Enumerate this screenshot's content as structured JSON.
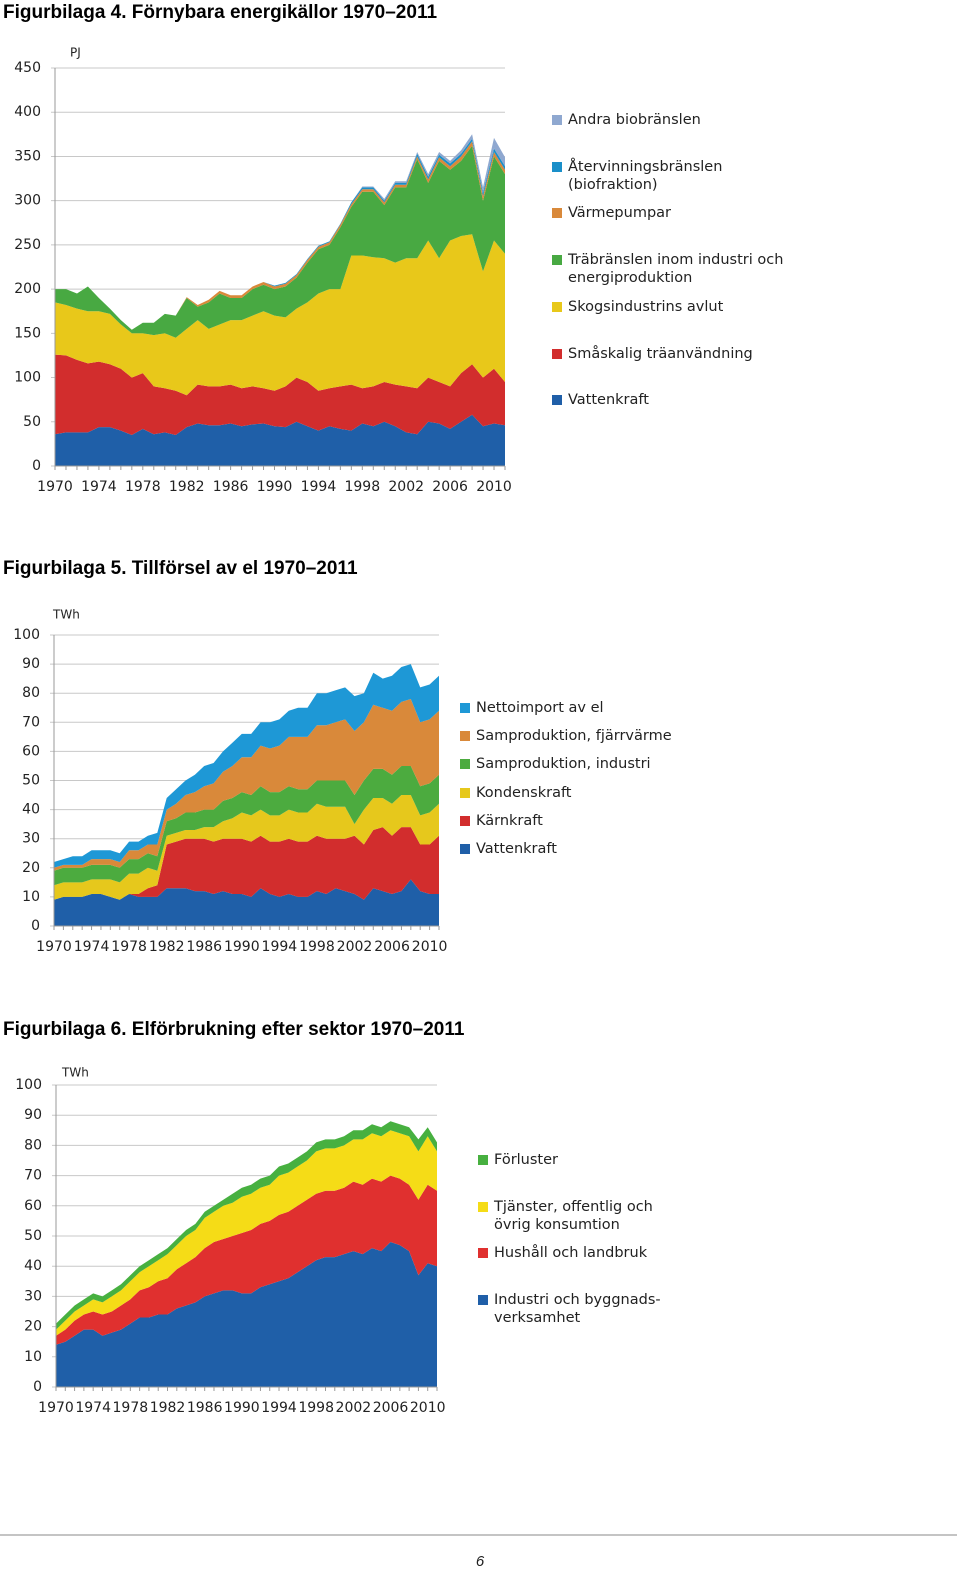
{
  "chart_data": [
    {
      "type": "area",
      "title": "Figurbilaga 4. Förnybara energikällor 1970–2011",
      "unit": "PJ",
      "x": [
        1970,
        1971,
        1972,
        1973,
        1974,
        1975,
        1976,
        1977,
        1978,
        1979,
        1980,
        1981,
        1982,
        1983,
        1984,
        1985,
        1986,
        1987,
        1988,
        1989,
        1990,
        1991,
        1992,
        1993,
        1994,
        1995,
        1996,
        1997,
        1998,
        1999,
        2000,
        2001,
        2002,
        2003,
        2004,
        2005,
        2006,
        2007,
        2008,
        2009,
        2010,
        2011
      ],
      "xlim": [
        1970,
        2011
      ],
      "xticks": [
        1970,
        1974,
        1978,
        1982,
        1986,
        1990,
        1994,
        1998,
        2002,
        2006,
        2010
      ],
      "ylim": [
        0,
        450
      ],
      "yticks": [
        0,
        50,
        100,
        150,
        200,
        250,
        300,
        350,
        400,
        450
      ],
      "grid": true,
      "stacked": true,
      "series": [
        {
          "name": "Vattenkraft",
          "color": "#1f5fa8",
          "values": [
            36,
            38,
            38,
            38,
            44,
            44,
            40,
            35,
            42,
            36,
            38,
            35,
            44,
            48,
            46,
            46,
            48,
            45,
            47,
            48,
            45,
            44,
            50,
            45,
            40,
            45,
            42,
            40,
            48,
            45,
            50,
            45,
            38,
            36,
            50,
            48,
            42,
            50,
            58,
            45,
            48,
            46
          ]
        },
        {
          "name": "Småskalig träanvändning",
          "color": "#d22d2d",
          "values": [
            90,
            87,
            82,
            78,
            74,
            71,
            70,
            65,
            63,
            54,
            50,
            50,
            36,
            44,
            44,
            44,
            44,
            43,
            43,
            40,
            40,
            46,
            50,
            50,
            45,
            43,
            48,
            52,
            40,
            45,
            45,
            47,
            52,
            52,
            50,
            47,
            48,
            55,
            57,
            55,
            62,
            49
          ]
        },
        {
          "name": "Skogsindustrins avlut",
          "color": "#e8c81a",
          "values": [
            59,
            57,
            58,
            59,
            57,
            57,
            50,
            50,
            45,
            58,
            62,
            60,
            75,
            73,
            65,
            70,
            73,
            77,
            80,
            87,
            85,
            78,
            78,
            90,
            110,
            112,
            110,
            146,
            150,
            146,
            140,
            138,
            145,
            147,
            155,
            140,
            165,
            155,
            147,
            120,
            145,
            145
          ]
        },
        {
          "name": "Träbränslen inom industri och energiproduktion",
          "color": "#48a942",
          "values": [
            15,
            18,
            17,
            28,
            15,
            6,
            5,
            4,
            12,
            14,
            22,
            25,
            35,
            15,
            30,
            35,
            25,
            25,
            30,
            30,
            30,
            35,
            35,
            45,
            50,
            50,
            70,
            55,
            72,
            74,
            60,
            85,
            80,
            112,
            65,
            110,
            80,
            85,
            100,
            80,
            95,
            90
          ]
        },
        {
          "name": "Värmepumpar",
          "color": "#d9893a",
          "values": [
            0,
            0,
            0,
            0,
            0,
            0,
            0,
            0,
            0,
            0,
            0,
            0,
            1,
            2,
            3,
            3,
            3,
            3,
            3,
            3,
            3,
            3,
            3,
            3,
            3,
            3,
            3,
            3,
            3,
            3,
            3,
            3,
            3,
            3,
            4,
            4,
            4,
            5,
            5,
            5,
            5,
            5
          ]
        },
        {
          "name": "Återvinningsbränslen (biofraktion)",
          "color": "#1a8fc9",
          "values": [
            0,
            0,
            0,
            0,
            0,
            0,
            0,
            0,
            0,
            0,
            0,
            0,
            0,
            0,
            0,
            0,
            0,
            0,
            0,
            0,
            1,
            1,
            1,
            1,
            1,
            1,
            1,
            2,
            2,
            2,
            2,
            2,
            2,
            3,
            3,
            3,
            3,
            3,
            3,
            4,
            4,
            4
          ]
        },
        {
          "name": "Andra biobränslen",
          "color": "#8fa8d0",
          "values": [
            0,
            0,
            0,
            0,
            0,
            0,
            0,
            0,
            0,
            0,
            0,
            0,
            0,
            0,
            0,
            0,
            0,
            0,
            0,
            0,
            0,
            0,
            0,
            0,
            0,
            0,
            0,
            0,
            1,
            1,
            2,
            2,
            2,
            2,
            3,
            3,
            3,
            4,
            5,
            6,
            12,
            10
          ]
        }
      ]
    },
    {
      "type": "area",
      "title": "Figurbilaga 5. Tillförsel av el 1970–2011",
      "unit": "TWh",
      "x": [
        1970,
        1971,
        1972,
        1973,
        1974,
        1975,
        1976,
        1977,
        1978,
        1979,
        1980,
        1981,
        1982,
        1983,
        1984,
        1985,
        1986,
        1987,
        1988,
        1989,
        1990,
        1991,
        1992,
        1993,
        1994,
        1995,
        1996,
        1997,
        1998,
        1999,
        2000,
        2001,
        2002,
        2003,
        2004,
        2005,
        2006,
        2007,
        2008,
        2009,
        2010,
        2011
      ],
      "xlim": [
        1970,
        2011
      ],
      "xticks": [
        1970,
        1974,
        1978,
        1982,
        1986,
        1990,
        1994,
        1998,
        2002,
        2006,
        2010
      ],
      "ylim": [
        0,
        100
      ],
      "yticks": [
        0,
        10,
        20,
        30,
        40,
        50,
        60,
        70,
        80,
        90,
        100
      ],
      "grid": true,
      "stacked": true,
      "series": [
        {
          "name": "Vattenkraft",
          "color": "#1f5fa8",
          "values": [
            9,
            10,
            10,
            10,
            11,
            11,
            10,
            9,
            11,
            10,
            10,
            10,
            13,
            13,
            13,
            12,
            12,
            11,
            12,
            11,
            11,
            10,
            13,
            11,
            10,
            11,
            10,
            10,
            12,
            11,
            13,
            12,
            11,
            9,
            13,
            12,
            11,
            12,
            16,
            12,
            11,
            11
          ]
        },
        {
          "name": "Kärnkraft",
          "color": "#d22d2d",
          "values": [
            0,
            0,
            0,
            0,
            0,
            0,
            0,
            0,
            0,
            1,
            3,
            4,
            15,
            16,
            17,
            18,
            18,
            18,
            18,
            19,
            19,
            19,
            18,
            18,
            19,
            19,
            19,
            19,
            19,
            19,
            17,
            18,
            20,
            19,
            20,
            22,
            20,
            22,
            18,
            16,
            17,
            20
          ]
        },
        {
          "name": "Kondenskraft",
          "color": "#e6c81c",
          "values": [
            5,
            5,
            5,
            5,
            5,
            5,
            6,
            6,
            7,
            7,
            7,
            5,
            3,
            3,
            3,
            3,
            4,
            5,
            6,
            7,
            9,
            9,
            9,
            9,
            9,
            10,
            10,
            10,
            11,
            11,
            11,
            11,
            4,
            12,
            11,
            10,
            11,
            11,
            11,
            10,
            11,
            11
          ]
        },
        {
          "name": "Samproduktion, industri",
          "color": "#4cab3f",
          "values": [
            5,
            5,
            5,
            5,
            5,
            5,
            5,
            5,
            5,
            5,
            5,
            5,
            5,
            5,
            6,
            6,
            6,
            6,
            7,
            7,
            7,
            7,
            8,
            8,
            8,
            8,
            8,
            8,
            8,
            9,
            9,
            9,
            10,
            10,
            10,
            10,
            10,
            10,
            10,
            10,
            10,
            10
          ]
        },
        {
          "name": "Samproduktion, fjärrvärme",
          "color": "#d9893a",
          "values": [
            1,
            1,
            1,
            1,
            2,
            2,
            2,
            2,
            3,
            3,
            3,
            4,
            4,
            5,
            6,
            7,
            8,
            9,
            10,
            11,
            12,
            13,
            14,
            15,
            16,
            17,
            18,
            18,
            19,
            19,
            20,
            21,
            22,
            20,
            22,
            21,
            22,
            22,
            23,
            22,
            22,
            22
          ]
        },
        {
          "name": "Nettoimport av el",
          "color": "#1e98d6",
          "values": [
            2,
            2,
            3,
            3,
            3,
            3,
            3,
            3,
            3,
            3,
            3,
            4,
            4,
            5,
            5,
            6,
            7,
            7,
            7,
            8,
            8,
            8,
            8,
            9,
            9,
            9,
            10,
            10,
            11,
            11,
            11,
            11,
            12,
            10,
            11,
            10,
            12,
            12,
            12,
            12,
            12,
            12
          ]
        }
      ]
    },
    {
      "type": "area",
      "title": "Figurbilaga 6. Elförbrukning efter sektor 1970–2011",
      "unit": "TWh",
      "x": [
        1970,
        1971,
        1972,
        1973,
        1974,
        1975,
        1976,
        1977,
        1978,
        1979,
        1980,
        1981,
        1982,
        1983,
        1984,
        1985,
        1986,
        1987,
        1988,
        1989,
        1990,
        1991,
        1992,
        1993,
        1994,
        1995,
        1996,
        1997,
        1998,
        1999,
        2000,
        2001,
        2002,
        2003,
        2004,
        2005,
        2006,
        2007,
        2008,
        2009,
        2010,
        2011
      ],
      "xlim": [
        1970,
        2011
      ],
      "xticks": [
        1970,
        1974,
        1978,
        1982,
        1986,
        1990,
        1994,
        1998,
        2002,
        2006,
        2010
      ],
      "ylim": [
        0,
        100
      ],
      "yticks": [
        0,
        10,
        20,
        30,
        40,
        50,
        60,
        70,
        80,
        90,
        100
      ],
      "grid": true,
      "stacked": true,
      "series": [
        {
          "name": "Industri och byggnads-verksamhet",
          "color": "#1f5fa8",
          "values": [
            14,
            15,
            17,
            19,
            19,
            17,
            18,
            19,
            21,
            23,
            23,
            24,
            24,
            26,
            27,
            28,
            30,
            31,
            32,
            32,
            31,
            31,
            33,
            34,
            35,
            36,
            38,
            40,
            42,
            43,
            43,
            44,
            45,
            44,
            46,
            45,
            48,
            47,
            45,
            37,
            41,
            40
          ]
        },
        {
          "name": "Hushåll och landbruk",
          "color": "#e0302f",
          "values": [
            3,
            4,
            5,
            5,
            6,
            7,
            7,
            8,
            8,
            9,
            10,
            11,
            12,
            13,
            14,
            15,
            16,
            17,
            17,
            18,
            20,
            21,
            21,
            21,
            22,
            22,
            22,
            22,
            22,
            22,
            22,
            22,
            23,
            23,
            23,
            23,
            22,
            22,
            22,
            25,
            26,
            25
          ]
        },
        {
          "name": "Tjänster, offentlig och övrig konsumtion",
          "color": "#f5dc17",
          "values": [
            2,
            3,
            3,
            3,
            4,
            4,
            5,
            5,
            6,
            6,
            7,
            7,
            8,
            8,
            9,
            9,
            10,
            10,
            11,
            11,
            12,
            12,
            12,
            12,
            13,
            13,
            13,
            13,
            14,
            14,
            14,
            14,
            14,
            15,
            15,
            15,
            15,
            15,
            16,
            16,
            16,
            13
          ]
        },
        {
          "name": "Förluster",
          "color": "#47b040",
          "values": [
            2,
            2,
            2,
            2,
            2,
            2,
            2,
            2,
            2,
            2,
            2,
            2,
            2,
            2,
            2,
            2,
            2,
            2,
            2,
            3,
            3,
            3,
            3,
            3,
            3,
            3,
            3,
            3,
            3,
            3,
            3,
            3,
            3,
            3,
            3,
            3,
            3,
            3,
            3,
            4,
            3,
            3
          ]
        }
      ]
    }
  ],
  "page_number": "6"
}
